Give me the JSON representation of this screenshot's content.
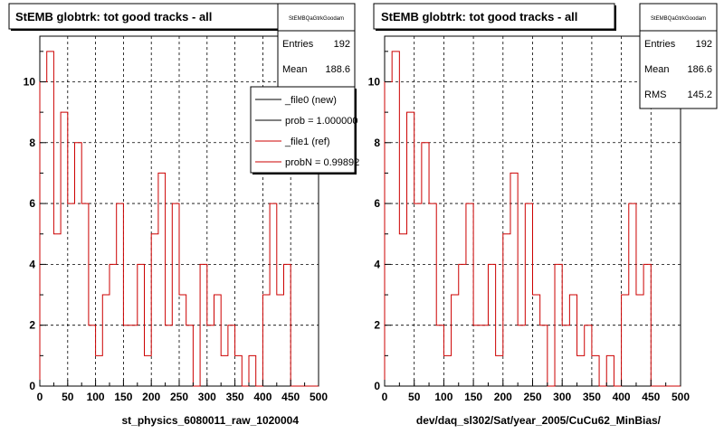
{
  "chart_data": [
    {
      "type": "histogram",
      "title": "StEMB globtrk: tot good tracks - all",
      "xlabel": "st_physics_6080011_raw_1020004",
      "ylabel": "",
      "xlim": [
        0,
        500
      ],
      "ylim": [
        0,
        11.5
      ],
      "x_ticks": [
        0,
        50,
        100,
        150,
        200,
        250,
        300,
        350,
        400,
        450,
        500
      ],
      "y_ticks": [
        0,
        2,
        4,
        6,
        8,
        10
      ],
      "grid": true,
      "bin_edges": [
        0,
        12.5,
        25,
        37.5,
        50,
        62.5,
        75,
        87.5,
        100,
        112.5,
        125,
        137.5,
        150,
        162.5,
        175,
        187.5,
        200,
        212.5,
        225,
        237.5,
        250,
        262.5,
        275,
        287.5,
        300,
        312.5,
        325,
        337.5,
        350,
        362.5,
        375,
        387.5,
        400,
        412.5,
        425,
        437.5,
        450,
        462.5,
        475,
        487.5,
        500
      ],
      "series": [
        {
          "name": "_file1 (ref)",
          "color": "#cc0000",
          "values": [
            10,
            11,
            5,
            9,
            6,
            8,
            6,
            2,
            1,
            3,
            4,
            6,
            2,
            2,
            4,
            1,
            5,
            7,
            2,
            6,
            3,
            2,
            0,
            4,
            2,
            3,
            1,
            2,
            1,
            0,
            1,
            0,
            3,
            6,
            3,
            4,
            0,
            0,
            0,
            0
          ]
        }
      ],
      "stats_box": {
        "name": "StEMBQaGtrkGoodam",
        "entries_label": "Entries",
        "entries": "192",
        "mean_label": "Mean",
        "mean": "188.6"
      },
      "legend": {
        "position": "top-right",
        "entries": [
          {
            "label": "_file0 (new)",
            "color": "#000000"
          },
          {
            "label": "prob = 1.000000",
            "color": "#000000"
          },
          {
            "label": "_file1 (ref)",
            "color": "#cc0000"
          },
          {
            "label": "probN = 0.99892",
            "color": "#cc0000"
          }
        ]
      }
    },
    {
      "type": "histogram",
      "title": "StEMB globtrk: tot good tracks - all",
      "xlabel": "dev/daq_sl302/Sat/year_2005/CuCu62_MinBias/",
      "ylabel": "",
      "xlim": [
        0,
        500
      ],
      "ylim": [
        0,
        11.5
      ],
      "x_ticks": [
        0,
        50,
        100,
        150,
        200,
        250,
        300,
        350,
        400,
        450,
        500
      ],
      "y_ticks": [
        0,
        2,
        4,
        6,
        8,
        10
      ],
      "grid": true,
      "bin_edges": [
        0,
        12.5,
        25,
        37.5,
        50,
        62.5,
        75,
        87.5,
        100,
        112.5,
        125,
        137.5,
        150,
        162.5,
        175,
        187.5,
        200,
        212.5,
        225,
        237.5,
        250,
        262.5,
        275,
        287.5,
        300,
        312.5,
        325,
        337.5,
        350,
        362.5,
        375,
        387.5,
        400,
        412.5,
        425,
        437.5,
        450,
        462.5,
        475,
        487.5,
        500
      ],
      "series": [
        {
          "name": "",
          "color": "#cc0000",
          "values": [
            10,
            11,
            5,
            9,
            6,
            8,
            6,
            2,
            1,
            3,
            4,
            6,
            2,
            2,
            4,
            1,
            5,
            7,
            2,
            6,
            3,
            2,
            0,
            4,
            2,
            3,
            1,
            2,
            1,
            0,
            1,
            0,
            3,
            6,
            3,
            4,
            0,
            0,
            0,
            0
          ]
        }
      ],
      "stats_box": {
        "name": "StEMBQaGtrkGoodam",
        "entries_label": "Entries",
        "entries": "192",
        "mean_label": "Mean",
        "mean": "186.6",
        "rms_label": "RMS",
        "rms": "145.2"
      }
    }
  ]
}
